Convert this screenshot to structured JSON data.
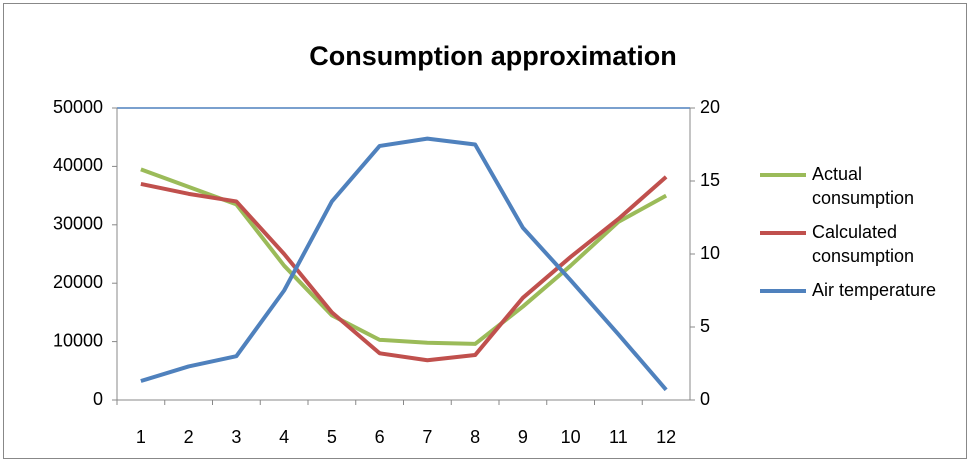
{
  "chart_data": {
    "type": "line",
    "title": "Consumption approximation",
    "categories": [
      "1",
      "2",
      "3",
      "4",
      "5",
      "6",
      "7",
      "8",
      "9",
      "10",
      "11",
      "12"
    ],
    "series": [
      {
        "name": "Actual consumption",
        "color": "#9bbb59",
        "values": [
          39500,
          36500,
          33500,
          23000,
          14500,
          10300,
          9800,
          9600,
          16000,
          23000,
          30500,
          35000
        ]
      },
      {
        "name": "Calculated consumption",
        "color": "#c0504d",
        "values": [
          37000,
          35300,
          34000,
          25000,
          15000,
          8000,
          6800,
          7700,
          17500,
          24500,
          31000,
          38200
        ]
      },
      {
        "name": "Air temperature",
        "color": "#4f81bd",
        "axis": "y2",
        "values": [
          1.3,
          2.3,
          3.0,
          7.5,
          13.6,
          17.4,
          17.9,
          17.5,
          11.8,
          8.2,
          4.5,
          0.7
        ]
      }
    ],
    "ylim": [
      0,
      50000
    ],
    "yticks": [
      0,
      10000,
      20000,
      30000,
      40000,
      50000
    ],
    "y2lim": [
      0,
      20
    ],
    "y2ticks": [
      0,
      5,
      10,
      15,
      20
    ],
    "legend": "right"
  }
}
